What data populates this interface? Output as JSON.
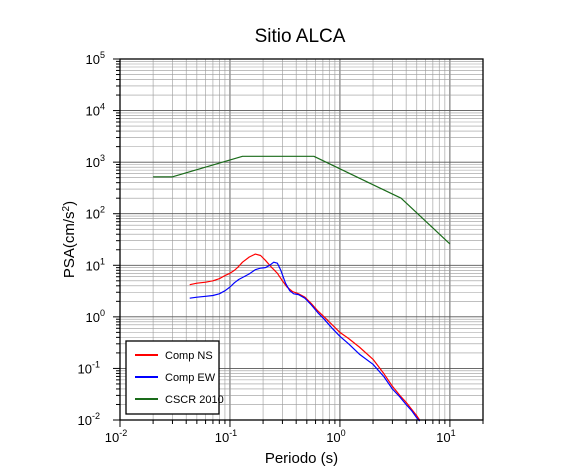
{
  "chart_data": {
    "type": "line",
    "title": "Sitio ALCA",
    "xlabel": "Periodo (s)",
    "ylabel": "PSA(cm/s2)",
    "x_scale": "log",
    "y_scale": "log",
    "xlim": [
      0.01,
      20
    ],
    "ylim": [
      0.01,
      100000
    ],
    "grid": true,
    "legend_position": "bottom-left",
    "x_ticks": [
      {
        "base": "10",
        "exp": "-2",
        "value": 0.01
      },
      {
        "base": "10",
        "exp": "-1",
        "value": 0.1
      },
      {
        "base": "10",
        "exp": "0",
        "value": 1
      },
      {
        "base": "10",
        "exp": "1",
        "value": 10
      }
    ],
    "y_ticks": [
      {
        "base": "10",
        "exp": "-2",
        "value": 0.01
      },
      {
        "base": "10",
        "exp": "-1",
        "value": 0.1
      },
      {
        "base": "10",
        "exp": "0",
        "value": 1
      },
      {
        "base": "10",
        "exp": "1",
        "value": 10
      },
      {
        "base": "10",
        "exp": "2",
        "value": 100
      },
      {
        "base": "10",
        "exp": "3",
        "value": 1000
      },
      {
        "base": "10",
        "exp": "4",
        "value": 10000
      },
      {
        "base": "10",
        "exp": "5",
        "value": 100000
      }
    ],
    "series": [
      {
        "name": "Comp NS",
        "color": "#ff0000",
        "x": [
          0.043,
          0.05,
          0.06,
          0.07,
          0.08,
          0.09,
          0.1,
          0.11,
          0.12,
          0.13,
          0.15,
          0.17,
          0.19,
          0.21,
          0.24,
          0.27,
          0.3,
          0.33,
          0.37,
          0.42,
          0.48,
          0.55,
          0.63,
          0.72,
          0.85,
          1.0,
          1.2,
          1.5,
          2.0,
          2.5,
          3.0,
          3.5,
          4.0,
          4.5,
          5.0,
          5.3
        ],
        "y": [
          4.2,
          4.5,
          4.7,
          5.0,
          5.5,
          6.3,
          7.0,
          8.0,
          9.5,
          11.5,
          14.5,
          16.5,
          15.5,
          12.5,
          9.0,
          7.0,
          5.0,
          3.8,
          3.1,
          2.8,
          2.4,
          1.8,
          1.3,
          1.0,
          0.7,
          0.5,
          0.38,
          0.26,
          0.15,
          0.08,
          0.045,
          0.03,
          0.022,
          0.016,
          0.012,
          0.01
        ]
      },
      {
        "name": "Comp EW",
        "color": "#0000ff",
        "x": [
          0.043,
          0.05,
          0.06,
          0.07,
          0.08,
          0.09,
          0.1,
          0.11,
          0.12,
          0.13,
          0.15,
          0.17,
          0.19,
          0.21,
          0.23,
          0.25,
          0.27,
          0.29,
          0.32,
          0.35,
          0.38,
          0.42,
          0.48,
          0.55,
          0.63,
          0.72,
          0.85,
          1.0,
          1.2,
          1.5,
          2.0,
          2.5,
          3.0,
          3.5,
          4.0,
          4.5,
          5.0,
          5.3
        ],
        "y": [
          2.3,
          2.4,
          2.5,
          2.6,
          2.8,
          3.2,
          3.8,
          4.6,
          5.3,
          5.8,
          6.8,
          8.2,
          8.8,
          9.0,
          10.0,
          11.5,
          11.0,
          8.0,
          4.5,
          3.2,
          2.8,
          2.7,
          2.3,
          1.7,
          1.2,
          0.9,
          0.6,
          0.42,
          0.3,
          0.19,
          0.12,
          0.07,
          0.04,
          0.028,
          0.02,
          0.015,
          0.011,
          0.0095
        ]
      },
      {
        "name": "CSCR 2010",
        "color": "#1a6b1a",
        "x": [
          0.02,
          0.03,
          0.13,
          0.58,
          3.6,
          10.0
        ],
        "y": [
          520,
          520,
          1300,
          1300,
          200,
          26
        ]
      }
    ]
  }
}
